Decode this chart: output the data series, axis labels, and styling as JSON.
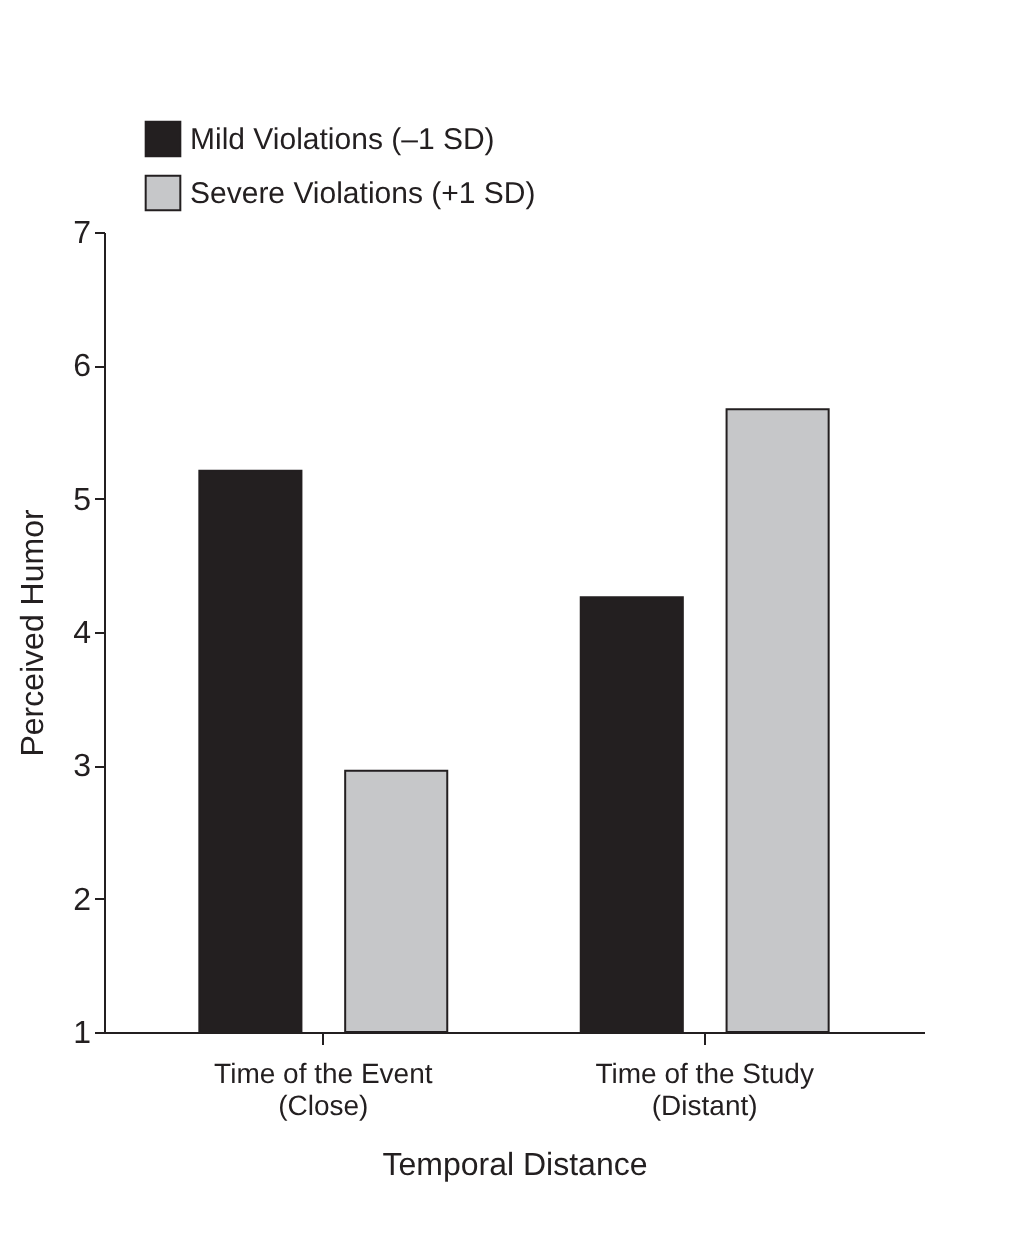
{
  "chart_data": {
    "type": "bar",
    "xlabel": "Temporal Distance",
    "ylabel": "Perceived Humor",
    "categories": [
      "Time of the Event\n(Close)",
      "Time of the Study\n(Distant)"
    ],
    "series": [
      {
        "name": "Mild Violations (–1 SD)",
        "color": "#231f20",
        "values": [
          5.21,
          4.26
        ]
      },
      {
        "name": "Severe Violations  (+1 SD)",
        "color": "#c6c7c9",
        "values": [
          2.96,
          5.67
        ]
      }
    ],
    "ylim": [
      1,
      7
    ],
    "yticks": [
      1,
      2,
      3,
      4,
      5,
      6,
      7
    ],
    "grid": false,
    "legend": "top left"
  }
}
